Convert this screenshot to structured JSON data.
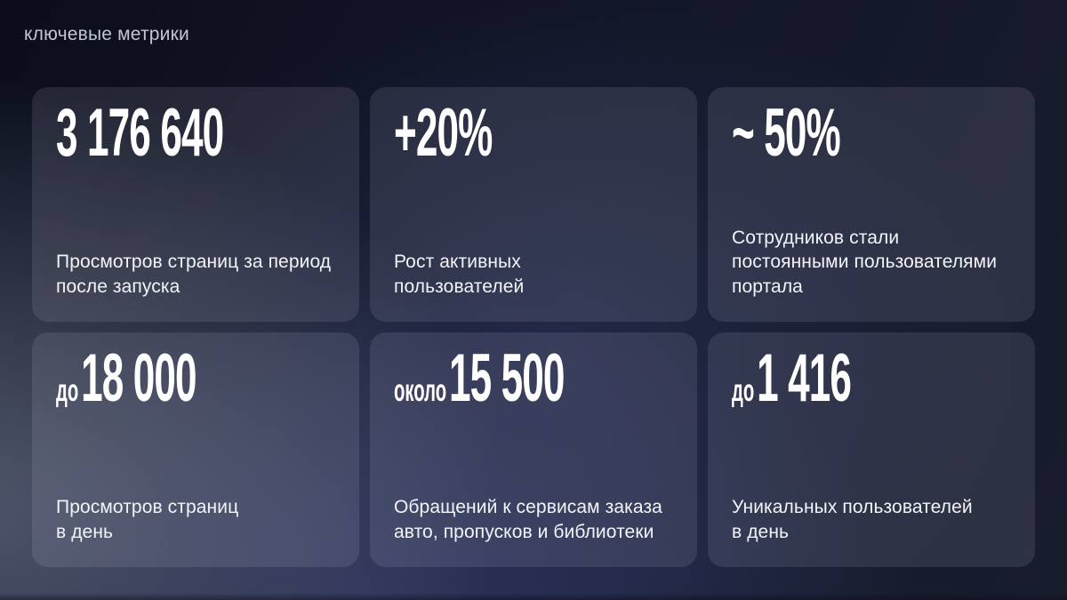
{
  "slide": {
    "title": "ключевые метрики"
  },
  "cards": [
    {
      "prefix": "",
      "value": "3 176 640",
      "description": "Просмотров страниц за период\nпосле запуска"
    },
    {
      "prefix": "",
      "value": "+20%",
      "description": "Рост активных\nпользователей"
    },
    {
      "prefix": "",
      "value": "~ 50%",
      "description": "Сотрудников стали\nпостоянными пользователями\nпортала"
    },
    {
      "prefix": "до",
      "value": "18 000",
      "description": "Просмотров страниц\nв день"
    },
    {
      "prefix": "около",
      "value": "15 500",
      "description": "Обращений к сервисам заказа\nавто, пропусков и библиотеки"
    },
    {
      "prefix": "до",
      "value": "1 416",
      "description": "Уникальных пользователей\nв день"
    }
  ],
  "colors": {
    "background_dark": "#0a0e1b",
    "background_glow_navy": "#363f70",
    "background_glow_gray": "#80889f",
    "card_overlay": "rgba(236,240,255,0.105)",
    "title_text": "#c2c6d2",
    "value_text": "#ffffff",
    "description_text": "#f2f4f8"
  }
}
